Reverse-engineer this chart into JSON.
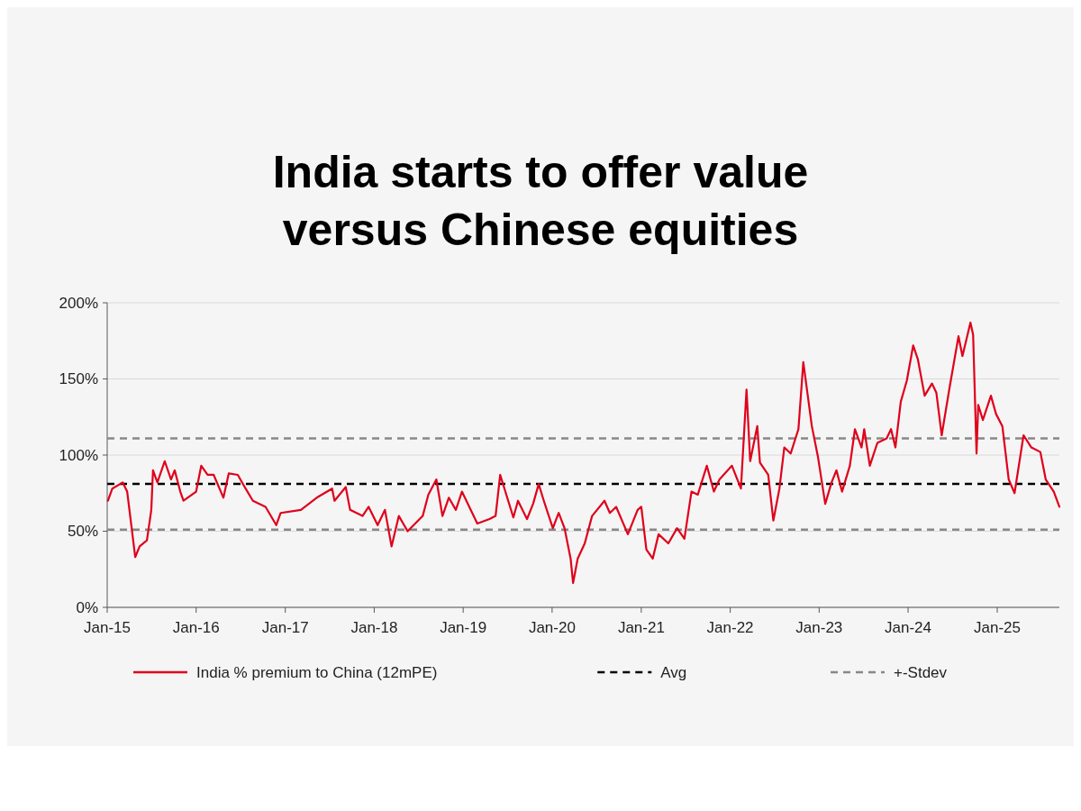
{
  "chart_data": {
    "type": "line",
    "title": "India starts to offer value versus Chinese equities",
    "x": [
      "2015-01-04",
      "2015-01-22",
      "2015-03-06",
      "2015-03-24",
      "2015-04-26",
      "2015-05-14",
      "2015-06-13",
      "2015-07-01",
      "2015-07-08",
      "2015-07-26",
      "2015-08-25",
      "2015-09-20",
      "2015-10-05",
      "2015-10-28",
      "2015-11-10",
      "2016-01-01",
      "2016-01-22",
      "2016-02-17",
      "2016-03-13",
      "2016-04-22",
      "2016-05-14",
      "2016-06-20",
      "2016-07-22",
      "2016-08-21",
      "2016-10-12",
      "2016-11-25",
      "2016-12-13",
      "2017-03-06",
      "2017-05-10",
      "2017-07-12",
      "2017-07-22",
      "2017-09-06",
      "2017-09-24",
      "2017-11-14",
      "2017-12-09",
      "2018-01-15",
      "2018-02-14",
      "2018-03-13",
      "2018-04-12",
      "2018-05-18",
      "2018-07-19",
      "2018-08-11",
      "2018-09-13",
      "2018-10-08",
      "2018-11-03",
      "2018-12-02",
      "2018-12-27",
      "2019-02-28",
      "2019-04-19",
      "2019-05-14",
      "2019-06-02",
      "2019-07-26",
      "2019-08-14",
      "2019-09-20",
      "2019-10-15",
      "2019-11-07",
      "2019-11-28",
      "2020-01-04",
      "2020-01-28",
      "2020-02-21",
      "2020-03-17",
      "2020-03-27",
      "2020-04-15",
      "2020-05-14",
      "2020-06-13",
      "2020-08-03",
      "2020-08-25",
      "2020-09-20",
      "2020-11-07",
      "2020-12-17",
      "2021-01-01",
      "2021-01-22",
      "2021-02-17",
      "2021-03-13",
      "2021-04-22",
      "2021-05-28",
      "2021-06-27",
      "2021-07-26",
      "2021-08-21",
      "2021-09-27",
      "2021-10-26",
      "2021-11-18",
      "2022-01-08",
      "2022-02-14",
      "2022-03-09",
      "2022-03-24",
      "2022-04-22",
      "2022-05-03",
      "2022-06-06",
      "2022-06-27",
      "2022-07-22",
      "2022-08-11",
      "2022-09-06",
      "2022-10-08",
      "2022-10-28",
      "2022-12-02",
      "2022-12-27",
      "2023-01-26",
      "2023-02-21",
      "2023-03-13",
      "2023-04-05",
      "2023-05-07",
      "2023-05-28",
      "2023-06-24",
      "2023-07-05",
      "2023-07-28",
      "2023-08-28",
      "2023-10-05",
      "2023-10-23",
      "2023-11-10",
      "2023-12-02",
      "2023-12-27",
      "2024-01-22",
      "2024-02-10",
      "2024-03-09",
      "2024-04-08",
      "2024-04-26",
      "2024-05-18",
      "2024-06-20",
      "2024-07-26",
      "2024-08-11",
      "2024-09-13",
      "2024-09-24",
      "2024-10-08",
      "2024-10-15",
      "2024-11-03",
      "2024-12-06",
      "2024-12-27",
      "2025-01-22",
      "2025-02-17",
      "2025-03-13",
      "2025-04-19",
      "2025-05-21",
      "2025-06-27",
      "2025-07-19",
      "2025-08-21",
      "2025-09-13"
    ],
    "series": [
      {
        "name": "India % premium to China (12mPE)",
        "color": "#e0001b",
        "values": [
          70,
          78,
          82,
          76,
          33,
          40,
          44,
          64,
          90,
          82,
          96,
          84,
          90,
          76,
          70,
          76,
          93,
          87,
          87,
          72,
          88,
          87,
          78,
          70,
          66,
          54,
          62,
          64,
          72,
          78,
          70,
          79,
          64,
          60,
          66,
          54,
          64,
          40,
          60,
          50,
          60,
          74,
          84,
          60,
          72,
          64,
          76,
          55,
          58,
          60,
          87,
          59,
          70,
          58,
          68,
          81,
          70,
          52,
          62,
          52,
          32,
          16,
          32,
          42,
          60,
          70,
          62,
          66,
          48,
          64,
          66,
          38,
          32,
          48,
          42,
          52,
          45,
          76,
          74,
          93,
          76,
          84,
          93,
          78,
          143,
          96,
          119,
          95,
          87,
          57,
          78,
          105,
          101,
          117,
          161,
          119,
          99,
          68,
          82,
          90,
          76,
          93,
          117,
          105,
          117,
          93,
          108,
          111,
          117,
          105,
          135,
          149,
          172,
          163,
          139,
          147,
          141,
          113,
          145,
          178,
          165,
          187,
          179,
          101,
          133,
          123,
          139,
          127,
          119,
          84,
          75,
          113,
          105,
          102,
          84,
          76,
          66
        ]
      }
    ],
    "ref_lines": [
      {
        "axis": "y",
        "value": 81,
        "label": "Avg",
        "color": "#000000",
        "line_style": "dashed"
      },
      {
        "axis": "y",
        "value": 111,
        "label": "+-Stdev",
        "color": "#888888",
        "line_style": "dashed"
      },
      {
        "axis": "y",
        "value": 51,
        "label": null,
        "color": "#888888",
        "line_style": "dashed"
      }
    ],
    "xlim": [
      "2015-01-01",
      "2025-09-13"
    ],
    "xticks": [
      {
        "value": "2015-01-01",
        "label": "Jan-15"
      },
      {
        "value": "2016-01-01",
        "label": "Jan-16"
      },
      {
        "value": "2017-01-01",
        "label": "Jan-17"
      },
      {
        "value": "2018-01-01",
        "label": "Jan-18"
      },
      {
        "value": "2019-01-01",
        "label": "Jan-19"
      },
      {
        "value": "2020-01-01",
        "label": "Jan-20"
      },
      {
        "value": "2021-01-01",
        "label": "Jan-21"
      },
      {
        "value": "2022-01-01",
        "label": "Jan-22"
      },
      {
        "value": "2023-01-01",
        "label": "Jan-23"
      },
      {
        "value": "2024-01-01",
        "label": "Jan-24"
      },
      {
        "value": "2025-01-01",
        "label": "Jan-25"
      }
    ],
    "ylim": [
      0,
      200
    ],
    "yticks": [
      {
        "value": 0,
        "label": "0%"
      },
      {
        "value": 50,
        "label": "50%"
      },
      {
        "value": 100,
        "label": "100%"
      },
      {
        "value": 150,
        "label": "150%"
      },
      {
        "value": 200,
        "label": "200%"
      }
    ],
    "grid": "y",
    "legend": "bottom",
    "marker": "none",
    "line_style": "solid"
  }
}
